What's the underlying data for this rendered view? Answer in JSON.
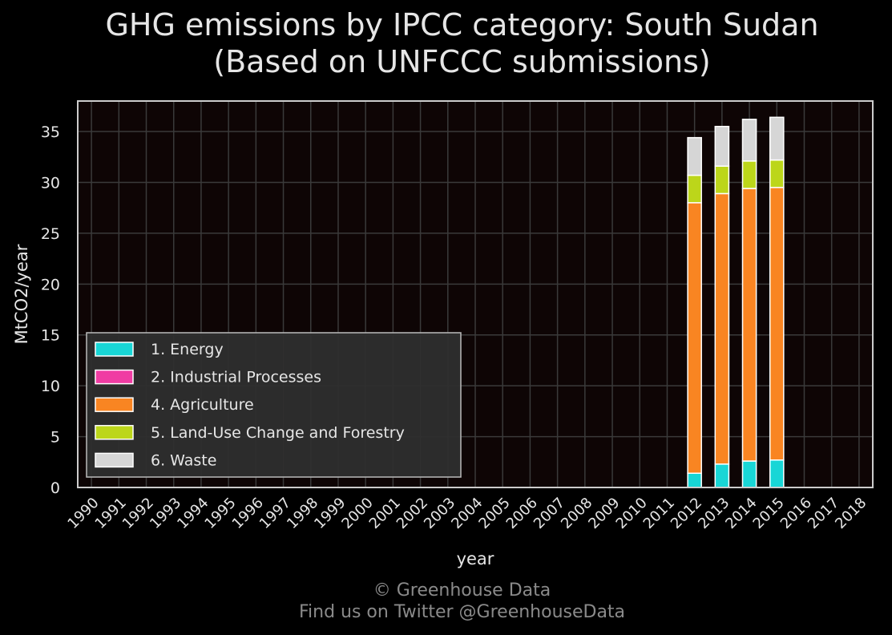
{
  "title": {
    "line1": "GHG emissions by IPCC category: South Sudan",
    "line2": "(Based on UNFCCC submissions)"
  },
  "footer": {
    "line1": "© Greenhouse Data",
    "line2": "Find us on Twitter @GreenhouseData"
  },
  "colors": {
    "background": "#000000",
    "plot_background": "#0e0505",
    "grid": "#3a3a3a",
    "frame": "#cccccc",
    "text": "#e6e6e6"
  },
  "chart_data": {
    "type": "bar",
    "stacked": true,
    "xlabel": "year",
    "ylabel": "MtCO2/year",
    "ylim": [
      0,
      38
    ],
    "yticks": [
      0,
      5,
      10,
      15,
      20,
      25,
      30,
      35
    ],
    "grid": true,
    "legend_position": "lower-left",
    "categories": [
      "1990",
      "1991",
      "1992",
      "1993",
      "1994",
      "1995",
      "1996",
      "1997",
      "1998",
      "1999",
      "2000",
      "2001",
      "2002",
      "2003",
      "2004",
      "2005",
      "2006",
      "2007",
      "2008",
      "2009",
      "2010",
      "2011",
      "2012",
      "2013",
      "2014",
      "2015",
      "2016",
      "2017",
      "2018"
    ],
    "series": [
      {
        "name": "1. Energy",
        "color": "#18d6d6",
        "values": [
          0,
          0,
          0,
          0,
          0,
          0,
          0,
          0,
          0,
          0,
          0,
          0,
          0,
          0,
          0,
          0,
          0,
          0,
          0,
          0,
          0,
          0,
          1.4,
          2.3,
          2.6,
          2.7,
          0,
          0,
          0
        ]
      },
      {
        "name": "2. Industrial Processes",
        "color": "#f03ca3",
        "values": [
          0,
          0,
          0,
          0,
          0,
          0,
          0,
          0,
          0,
          0,
          0,
          0,
          0,
          0,
          0,
          0,
          0,
          0,
          0,
          0,
          0,
          0,
          0,
          0,
          0,
          0,
          0,
          0,
          0
        ]
      },
      {
        "name": "4. Agriculture",
        "color": "#f98522",
        "values": [
          0,
          0,
          0,
          0,
          0,
          0,
          0,
          0,
          0,
          0,
          0,
          0,
          0,
          0,
          0,
          0,
          0,
          0,
          0,
          0,
          0,
          0,
          26.6,
          26.6,
          26.8,
          26.8,
          0,
          0,
          0
        ]
      },
      {
        "name": "5. Land-Use Change and Forestry",
        "color": "#bcd61a",
        "values": [
          0,
          0,
          0,
          0,
          0,
          0,
          0,
          0,
          0,
          0,
          0,
          0,
          0,
          0,
          0,
          0,
          0,
          0,
          0,
          0,
          0,
          0,
          2.7,
          2.7,
          2.7,
          2.7,
          0,
          0,
          0
        ]
      },
      {
        "name": "6. Waste",
        "color": "#d6d6d6",
        "values": [
          0,
          0,
          0,
          0,
          0,
          0,
          0,
          0,
          0,
          0,
          0,
          0,
          0,
          0,
          0,
          0,
          0,
          0,
          0,
          0,
          0,
          0,
          3.7,
          3.9,
          4.1,
          4.2,
          0,
          0,
          0
        ]
      }
    ]
  }
}
